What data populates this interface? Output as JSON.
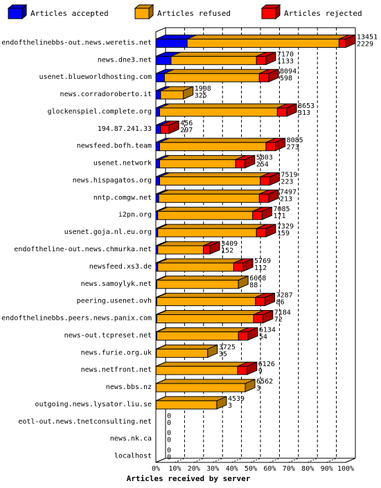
{
  "chart_data": {
    "type": "bar",
    "orientation": "horizontal",
    "stacked": true,
    "three_d": true,
    "xlabel": "Articles received by server",
    "x_ticks": [
      "0%",
      "10%",
      "20%",
      "30%",
      "40%",
      "50%",
      "60%",
      "70%",
      "80%",
      "90%",
      "100%"
    ],
    "legend_position": "top",
    "series": [
      {
        "name": "Articles accepted",
        "color": "#0000ff"
      },
      {
        "name": "Articles refused",
        "color": "#ffaa00"
      },
      {
        "name": "Articles rejected",
        "color": "#ff0000"
      }
    ],
    "rows": [
      {
        "label": "endofthelinebbs-out.news.weretis.net",
        "accepted_pct": 16.5,
        "refused_pct": 80.0,
        "rejected_pct": 3.5,
        "value1": "13451",
        "value2": "2229"
      },
      {
        "label": "news.dne3.net",
        "accepted_pct": 8.0,
        "refused_pct": 45.0,
        "rejected_pct": 5.0,
        "value1": "7170",
        "value2": "1133"
      },
      {
        "label": "usenet.blueworldhosting.com",
        "accepted_pct": 4.5,
        "refused_pct": 50.0,
        "rejected_pct": 5.0,
        "value1": "8094",
        "value2": "598"
      },
      {
        "label": "news.corradoroberto.it",
        "accepted_pct": 2.5,
        "refused_pct": 12.0,
        "rejected_pct": 0,
        "value1": "1908",
        "value2": "325"
      },
      {
        "label": "glockenspiel.complete.org",
        "accepted_pct": 2.0,
        "refused_pct": 62.0,
        "rejected_pct": 5.0,
        "value1": "8653",
        "value2": "313"
      },
      {
        "label": "194.87.241.33",
        "accepted_pct": 2.5,
        "refused_pct": 0,
        "rejected_pct": 4.5,
        "value1": "456",
        "value2": "297"
      },
      {
        "label": "newsfeed.bofh.team",
        "accepted_pct": 2.0,
        "refused_pct": 56.0,
        "rejected_pct": 5.0,
        "value1": "8085",
        "value2": "273"
      },
      {
        "label": "usenet.network",
        "accepted_pct": 2.0,
        "refused_pct": 40.0,
        "rejected_pct": 5.0,
        "value1": "5803",
        "value2": "254"
      },
      {
        "label": "news.hispagatos.org",
        "accepted_pct": 2.0,
        "refused_pct": 53.0,
        "rejected_pct": 5.0,
        "value1": "7519",
        "value2": "223"
      },
      {
        "label": "nntp.comgw.net",
        "accepted_pct": 1.5,
        "refused_pct": 53.0,
        "rejected_pct": 5.0,
        "value1": "7497",
        "value2": "213"
      },
      {
        "label": "i2pn.org",
        "accepted_pct": 1.0,
        "refused_pct": 50.0,
        "rejected_pct": 5.0,
        "value1": "7085",
        "value2": "171"
      },
      {
        "label": "usenet.goja.nl.eu.org",
        "accepted_pct": 1.0,
        "refused_pct": 52.0,
        "rejected_pct": 5.0,
        "value1": "7329",
        "value2": "159"
      },
      {
        "label": "endoftheline-out.news.chmurka.net",
        "accepted_pct": 1.0,
        "refused_pct": 24.0,
        "rejected_pct": 3.5,
        "value1": "3409",
        "value2": "152"
      },
      {
        "label": "newsfeed.xs3.de",
        "accepted_pct": 1.0,
        "refused_pct": 40.0,
        "rejected_pct": 5.0,
        "value1": "5769",
        "value2": "112"
      },
      {
        "label": "news.samoylyk.net",
        "accepted_pct": 0.5,
        "refused_pct": 43.0,
        "rejected_pct": 0,
        "value1": "6068",
        "value2": "88"
      },
      {
        "label": "peering.usenet.ovh",
        "accepted_pct": 0.5,
        "refused_pct": 52.0,
        "rejected_pct": 5.0,
        "value1": "7287",
        "value2": "86"
      },
      {
        "label": "endofthelinebbs.peers.news.panix.com",
        "accepted_pct": 0.5,
        "refused_pct": 51.0,
        "rejected_pct": 5.0,
        "value1": "7184",
        "value2": "72"
      },
      {
        "label": "news-out.tcpreset.net",
        "accepted_pct": 0.5,
        "refused_pct": 43.0,
        "rejected_pct": 5.0,
        "value1": "6134",
        "value2": "54"
      },
      {
        "label": "news.furie.org.uk",
        "accepted_pct": 0.3,
        "refused_pct": 27.0,
        "rejected_pct": 0,
        "value1": "3725",
        "value2": "35"
      },
      {
        "label": "news.netfront.net",
        "accepted_pct": 0.1,
        "refused_pct": 43.0,
        "rejected_pct": 5.0,
        "value1": "6126",
        "value2": "9"
      },
      {
        "label": "news.bbs.nz",
        "accepted_pct": 0.1,
        "refused_pct": 47.0,
        "rejected_pct": 0,
        "value1": "6562",
        "value2": "3"
      },
      {
        "label": "outgoing.news.lysator.liu.se",
        "accepted_pct": 0.1,
        "refused_pct": 32.0,
        "rejected_pct": 0,
        "value1": "4539",
        "value2": "3"
      },
      {
        "label": "eotl-out.news.tnetconsulting.net",
        "accepted_pct": 0,
        "refused_pct": 0,
        "rejected_pct": 0,
        "value1": "0",
        "value2": "0"
      },
      {
        "label": "news.nk.ca",
        "accepted_pct": 0,
        "refused_pct": 0,
        "rejected_pct": 0,
        "value1": "0",
        "value2": "0"
      },
      {
        "label": "localhost",
        "accepted_pct": 0,
        "refused_pct": 0,
        "rejected_pct": 0,
        "value1": "0",
        "value2": "0"
      }
    ]
  }
}
